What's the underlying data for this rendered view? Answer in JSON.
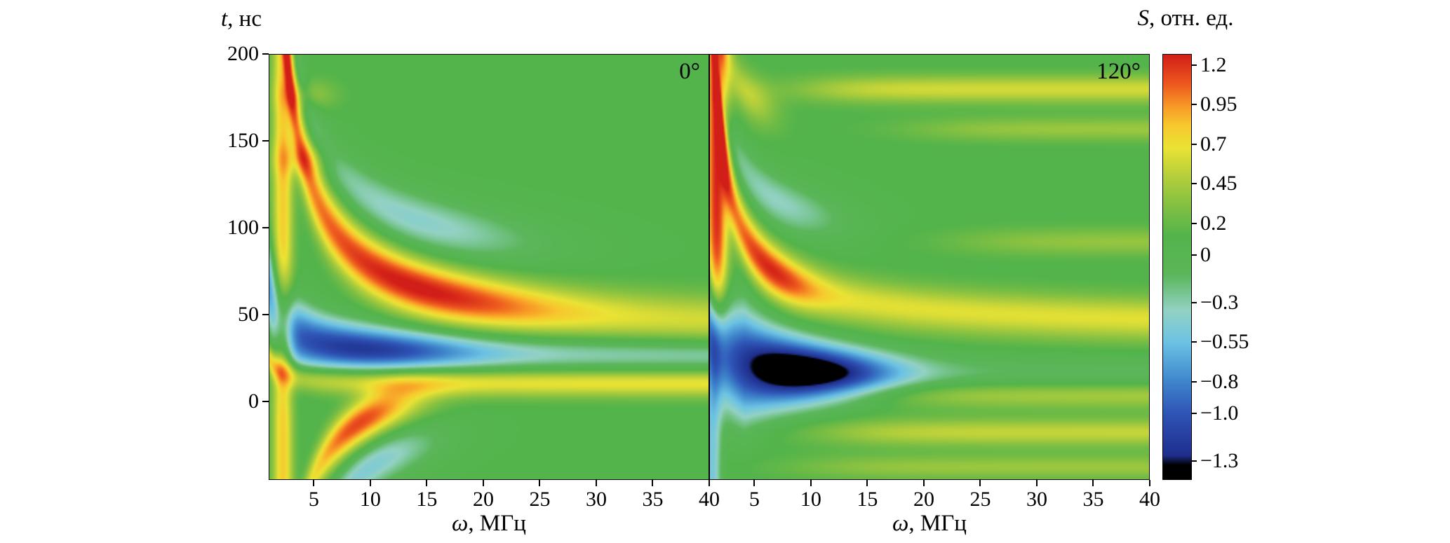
{
  "chart_data": {
    "type": "heatmap",
    "title": "",
    "xlabel": {
      "italic": "ω",
      "rest": ", МГц"
    },
    "ylabel": {
      "italic": "t",
      "rest": ", нс"
    },
    "x_range": [
      1,
      40
    ],
    "y_range": [
      -45,
      200
    ],
    "x_ticks": [
      5,
      10,
      15,
      20,
      25,
      30,
      35,
      40
    ],
    "y_ticks": [
      200,
      150,
      100,
      50,
      0
    ],
    "grid": false,
    "colorbar": {
      "title": {
        "italic": "S",
        "rest": ", отн. ед."
      },
      "value_range": [
        -1.42,
        1.27
      ],
      "ticks": [
        {
          "label": "1.2",
          "value": 1.2
        },
        {
          "label": "0.95",
          "value": 0.95
        },
        {
          "label": "0.7",
          "value": 0.7
        },
        {
          "label": "0.45",
          "value": 0.45
        },
        {
          "label": "0.2",
          "value": 0.2
        },
        {
          "label": "0",
          "value": 0
        },
        {
          "label": "−0.3",
          "value": -0.3
        },
        {
          "label": "−0.55",
          "value": -0.55
        },
        {
          "label": "−0.8",
          "value": -0.8
        },
        {
          "label": "−1.0",
          "value": -1.0
        },
        {
          "label": "−1.3",
          "value": -1.3
        }
      ]
    },
    "colormap_stops": [
      [
        -1.45,
        "#000000"
      ],
      [
        -1.33,
        "#000000"
      ],
      [
        -1.27,
        "#1f2e8c"
      ],
      [
        -1.0,
        "#2f55b6"
      ],
      [
        -0.8,
        "#3f86cc"
      ],
      [
        -0.55,
        "#6cc3e4"
      ],
      [
        -0.35,
        "#93d2c4"
      ],
      [
        -0.12,
        "#5bb65a"
      ],
      [
        0.12,
        "#53b44b"
      ],
      [
        0.3,
        "#7fbf43"
      ],
      [
        0.5,
        "#b5cf3b"
      ],
      [
        0.68,
        "#eae334"
      ],
      [
        0.82,
        "#f7c92e"
      ],
      [
        0.95,
        "#f79726"
      ],
      [
        1.08,
        "#ee5a1f"
      ],
      [
        1.27,
        "#d21e18"
      ]
    ],
    "panels": [
      {
        "label": "0°",
        "background": 0.1,
        "features": [
          {
            "type": "ridge",
            "amp_base": 0.5,
            "amp_peak": 0.7,
            "amp_mu": 14,
            "amp_sigma": 12,
            "t0": 36,
            "c": 420,
            "w0": 14,
            "w1": 30,
            "w_cap": 34
          },
          {
            "type": "ridge",
            "amp_base": -0.45,
            "amp_peak": -0.85,
            "amp_mu": 9,
            "amp_sigma": 10,
            "t0": 26,
            "c": 40,
            "w0": 9,
            "w1": 40,
            "w_cap": 26
          },
          {
            "type": "ridge",
            "amp_base": 0.6,
            "amp_peak": 0,
            "amp_mu": 10,
            "amp_sigma": 5,
            "t0": 10,
            "c": 15,
            "w0": 8,
            "w1": 0
          },
          {
            "type": "ridge",
            "amp_base": 0,
            "amp_peak": 1.05,
            "amp_mu": 9,
            "amp_sigma": 5.5,
            "t0": 24,
            "c": -330,
            "w0": 13,
            "w1": 0
          },
          {
            "type": "ridge",
            "amp_base": 0,
            "amp_peak": -0.5,
            "amp_mu": 14,
            "amp_sigma": 11,
            "t0": 74,
            "c": 430,
            "w0": 16,
            "w1": 0
          },
          {
            "type": "ridge",
            "amp_base": 0,
            "amp_peak": -0.55,
            "amp_mu": 10,
            "amp_sigma": 6,
            "t0": 4,
            "c": -420,
            "w0": 14,
            "w1": 0
          },
          {
            "type": "vstripe",
            "mu": 2.2,
            "sigma": 0.9,
            "amp": 0.7
          },
          {
            "type": "hblob",
            "t_mu": 140,
            "t_sigma": 10,
            "w_mu": 4,
            "w_sigma": 2.5,
            "amp": 0.3
          },
          {
            "type": "hblob",
            "t_mu": 177,
            "t_sigma": 9,
            "w_mu": 4.5,
            "w_sigma": 2.5,
            "amp": 0.28
          }
        ]
      },
      {
        "label": "120°",
        "background": 0.1,
        "features": [
          {
            "type": "vstripe",
            "mu": 1.6,
            "sigma": 1.0,
            "amp": 1.15,
            "gate_t": 55,
            "gate_w": 25,
            "gate_dir": 1
          },
          {
            "type": "vstripe",
            "mu": 1.2,
            "sigma": 0.8,
            "amp": -0.6,
            "gate_t": 45,
            "gate_w": 20,
            "gate_dir": -1
          },
          {
            "type": "ridge",
            "amp_base": 0.55,
            "amp_peak": 0.6,
            "amp_mu": 6.5,
            "amp_sigma": 4,
            "t0": 42,
            "c": 220,
            "w0": 12,
            "w1": 20,
            "w_cap": 26
          },
          {
            "type": "ridge",
            "amp_base": -0.25,
            "amp_peak": -1.55,
            "amp_mu": 9,
            "amp_sigma": 8,
            "t0": 14,
            "c": 30,
            "w0": 8,
            "w1": 90,
            "w_cap": 30
          },
          {
            "type": "ridge",
            "amp_base": 0,
            "amp_peak": -0.45,
            "amp_mu": 7,
            "amp_sigma": 6,
            "t0": 90,
            "c": 180,
            "w0": 15,
            "w1": 0
          },
          {
            "type": "ridge",
            "amp_base": 0,
            "amp_peak": 0.4,
            "amp_mu": 4.5,
            "amp_sigma": 2.5,
            "t0": 150,
            "c": 120,
            "w0": 14,
            "w1": 0
          },
          {
            "type": "hstreak",
            "t_mu": 180,
            "t_sigma": 8,
            "amp": 0.5,
            "gate_w0": 10,
            "gate_ww": 5
          },
          {
            "type": "hstreak",
            "t_mu": 157,
            "t_sigma": 7,
            "amp": 0.3,
            "gate_w0": 20,
            "gate_ww": 6
          },
          {
            "type": "hstreak",
            "t_mu": 92,
            "t_sigma": 8,
            "amp": 0.28,
            "gate_w0": 24,
            "gate_ww": 6
          },
          {
            "type": "hstreak",
            "t_mu": 4,
            "t_sigma": 8,
            "amp": 0.4,
            "gate_w0": 15,
            "gate_ww": 6
          },
          {
            "type": "hstreak",
            "t_mu": -18,
            "t_sigma": 8,
            "amp": 0.45,
            "gate_w0": 12,
            "gate_ww": 6
          },
          {
            "type": "hstreak",
            "t_mu": -38,
            "t_sigma": 7,
            "amp": 0.3,
            "gate_w0": 10,
            "gate_ww": 6
          }
        ]
      }
    ]
  }
}
